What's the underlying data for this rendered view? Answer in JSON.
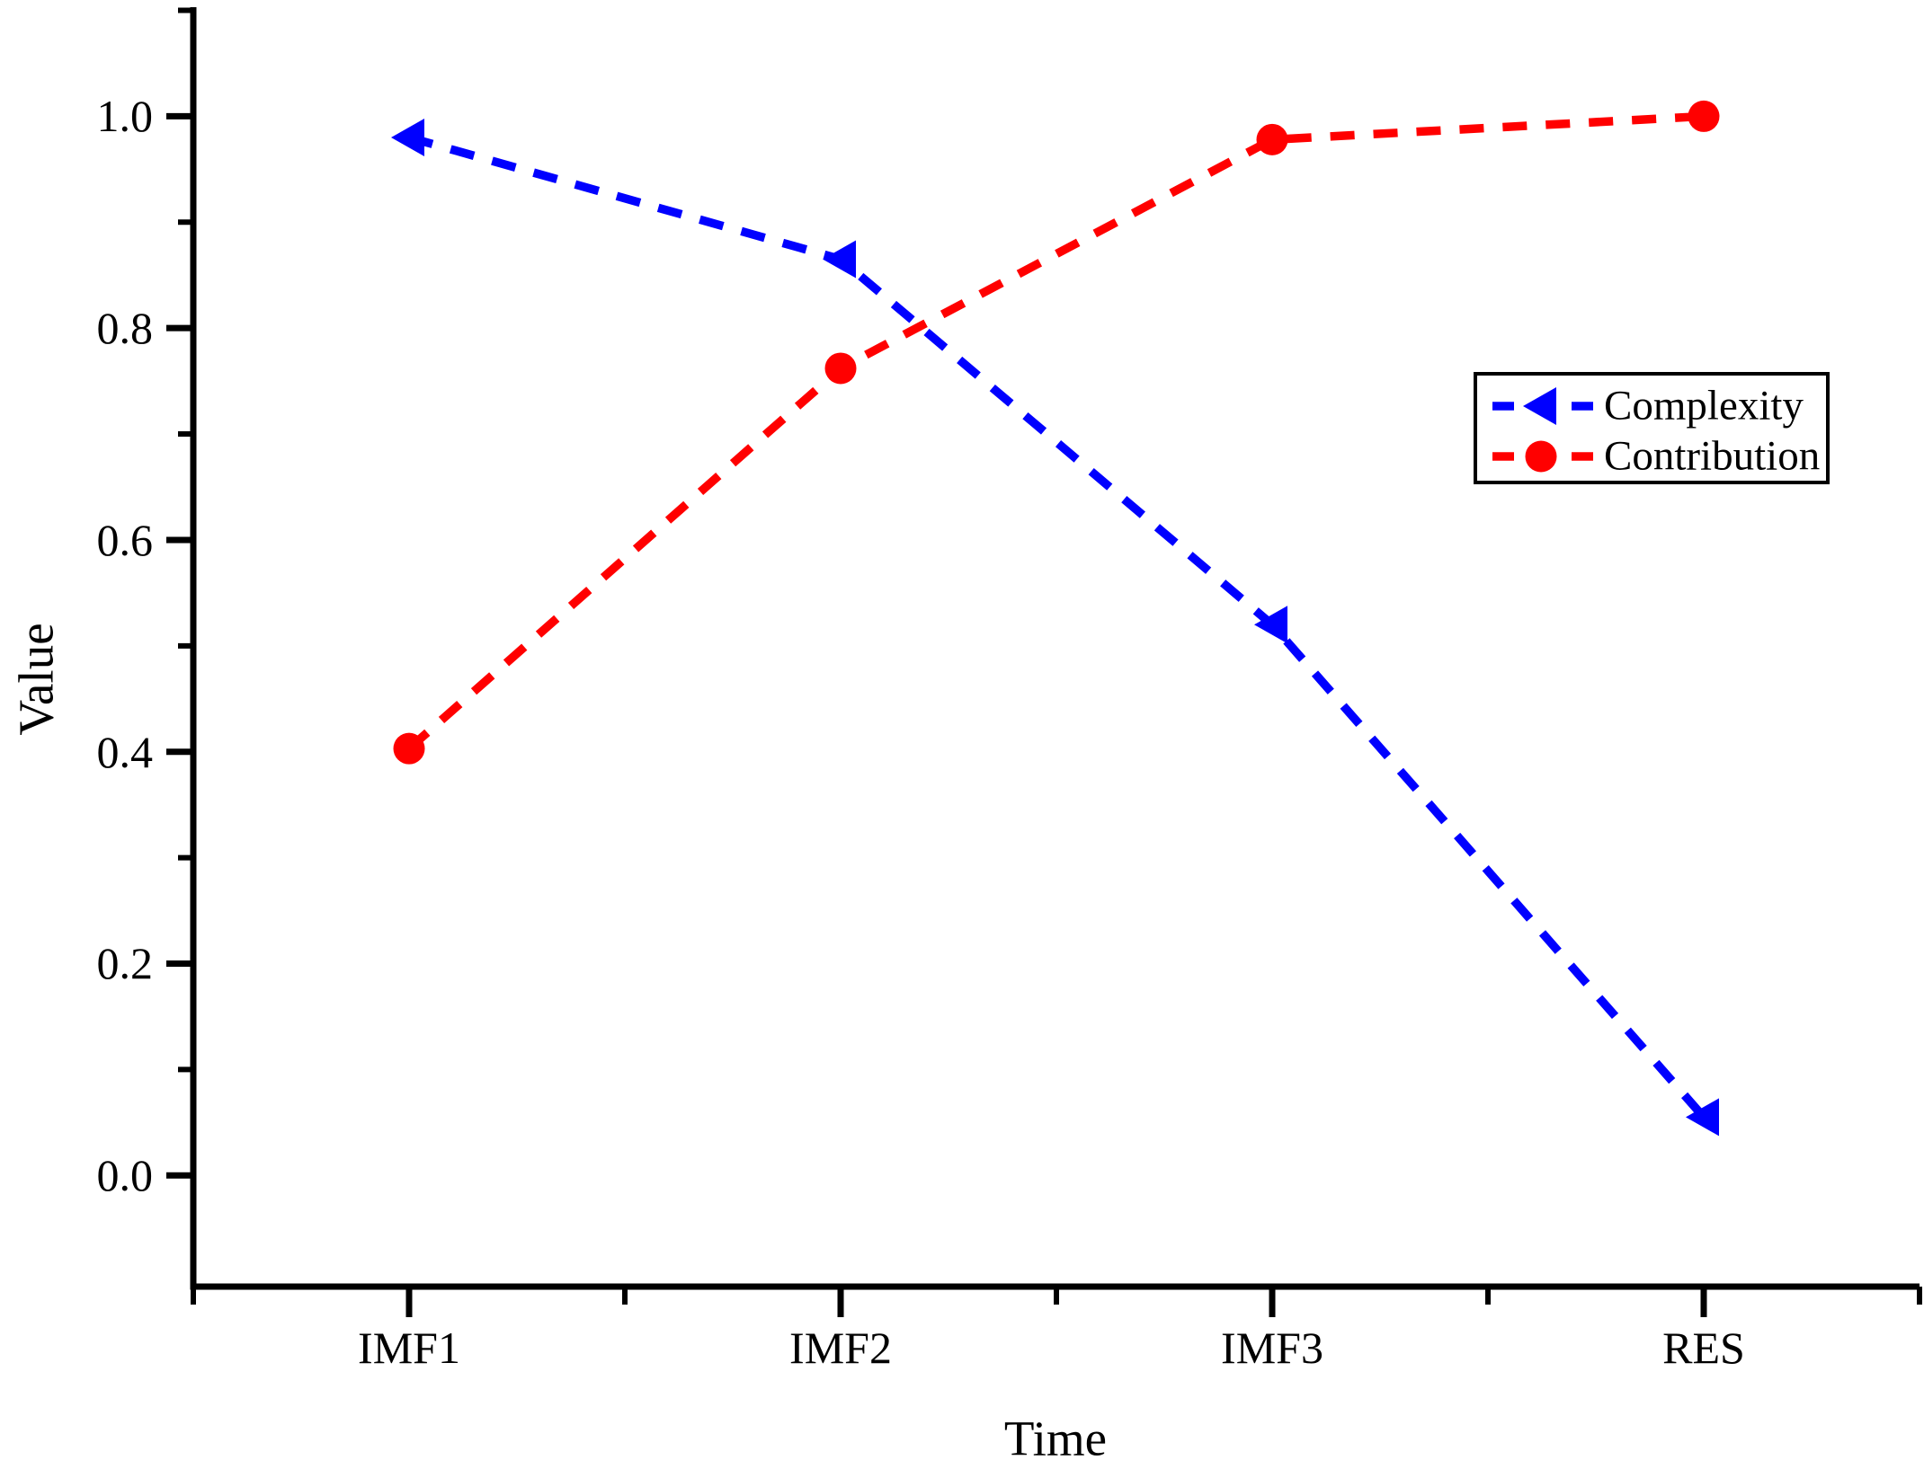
{
  "figure": {
    "background": "#ffffff",
    "axis_color": "#000000",
    "text_color": "#000000"
  },
  "chart_data": {
    "type": "line",
    "title": "",
    "xlabel": "Time",
    "ylabel": "Value",
    "categories": [
      "IMF1",
      "IMF2",
      "IMF3",
      "RES"
    ],
    "series": [
      {
        "name": "Complexity",
        "color": "#0000ff",
        "marker": "triangle-left",
        "linestyle": "dashed",
        "values": [
          0.98,
          0.865,
          0.52,
          0.055
        ]
      },
      {
        "name": "Contribution",
        "color": "#ff0000",
        "marker": "circle",
        "linestyle": "dashed",
        "values": [
          0.403,
          0.762,
          0.978,
          1.0
        ]
      }
    ],
    "ylim": [
      -0.105,
      1.103
    ],
    "yticks_major": [
      0.0,
      0.2,
      0.4,
      0.6,
      0.8,
      1.0
    ],
    "ytick_labels": [
      "0.0",
      "0.2",
      "0.4",
      "0.6",
      "0.8",
      "1.0"
    ],
    "yticks_minor": [
      0.1,
      0.3,
      0.5,
      0.7,
      0.9,
      1.1
    ],
    "grid": false,
    "legend": {
      "position": "upper-right-inside",
      "border": true,
      "entries": [
        "Complexity",
        "Contribution"
      ]
    }
  }
}
